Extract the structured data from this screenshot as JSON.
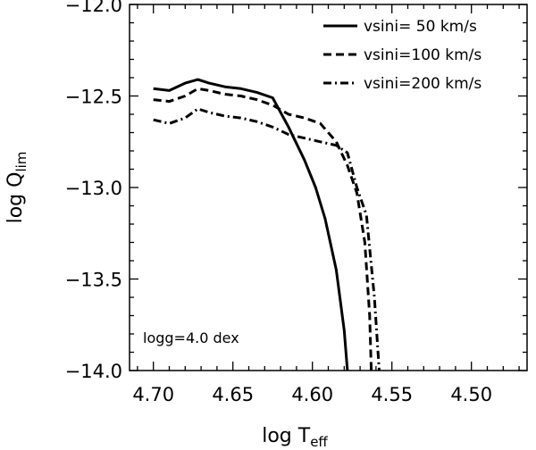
{
  "chart_data": {
    "type": "line",
    "title": "",
    "xlabel": {
      "main": "log T",
      "sub": "eff"
    },
    "ylabel": {
      "main": "log Q",
      "sub": "lim"
    },
    "xlim": [
      4.715,
      4.465
    ],
    "ylim": [
      -14.0,
      -12.0
    ],
    "x_ticks": [
      4.7,
      4.65,
      4.6,
      4.55,
      4.5
    ],
    "x_tick_labels": [
      "4.70",
      "4.65",
      "4.60",
      "4.55",
      "4.50"
    ],
    "y_ticks": [
      -12.0,
      -12.5,
      -13.0,
      -13.5,
      -14.0
    ],
    "y_tick_labels": [
      "−12.0",
      "−12.5",
      "−13.0",
      "−13.5",
      "−14.0"
    ],
    "grid": false,
    "legend_position": "top-right",
    "annotation": "logg=4.0 dex",
    "series": [
      {
        "name": "vsini= 50 km/s",
        "style": "solid",
        "x": [
          4.7,
          4.69,
          4.68,
          4.672,
          4.665,
          4.655,
          4.645,
          4.635,
          4.625,
          4.615,
          4.605,
          4.598,
          4.592,
          4.585,
          4.58,
          4.578
        ],
        "y": [
          -12.46,
          -12.47,
          -12.43,
          -12.41,
          -12.43,
          -12.45,
          -12.46,
          -12.48,
          -12.51,
          -12.67,
          -12.85,
          -13.0,
          -13.17,
          -13.45,
          -13.78,
          -14.0
        ]
      },
      {
        "name": "vsini=100 km/s",
        "style": "dashed",
        "x": [
          4.7,
          4.69,
          4.68,
          4.672,
          4.665,
          4.655,
          4.645,
          4.635,
          4.625,
          4.615,
          4.605,
          4.595,
          4.585,
          4.578,
          4.572,
          4.567,
          4.564,
          4.563
        ],
        "y": [
          -12.52,
          -12.53,
          -12.5,
          -12.46,
          -12.47,
          -12.49,
          -12.5,
          -12.52,
          -12.55,
          -12.6,
          -12.62,
          -12.65,
          -12.75,
          -12.88,
          -13.03,
          -13.3,
          -13.7,
          -14.0
        ]
      },
      {
        "name": "vsini=200 km/s",
        "style": "dashdot",
        "x": [
          4.7,
          4.69,
          4.68,
          4.672,
          4.665,
          4.655,
          4.645,
          4.635,
          4.625,
          4.615,
          4.605,
          4.595,
          4.585,
          4.578,
          4.572,
          4.566,
          4.561,
          4.558
        ],
        "y": [
          -12.63,
          -12.65,
          -12.62,
          -12.57,
          -12.59,
          -12.61,
          -12.62,
          -12.64,
          -12.67,
          -12.71,
          -12.73,
          -12.75,
          -12.77,
          -12.81,
          -13.0,
          -13.15,
          -13.6,
          -14.0
        ]
      }
    ]
  }
}
